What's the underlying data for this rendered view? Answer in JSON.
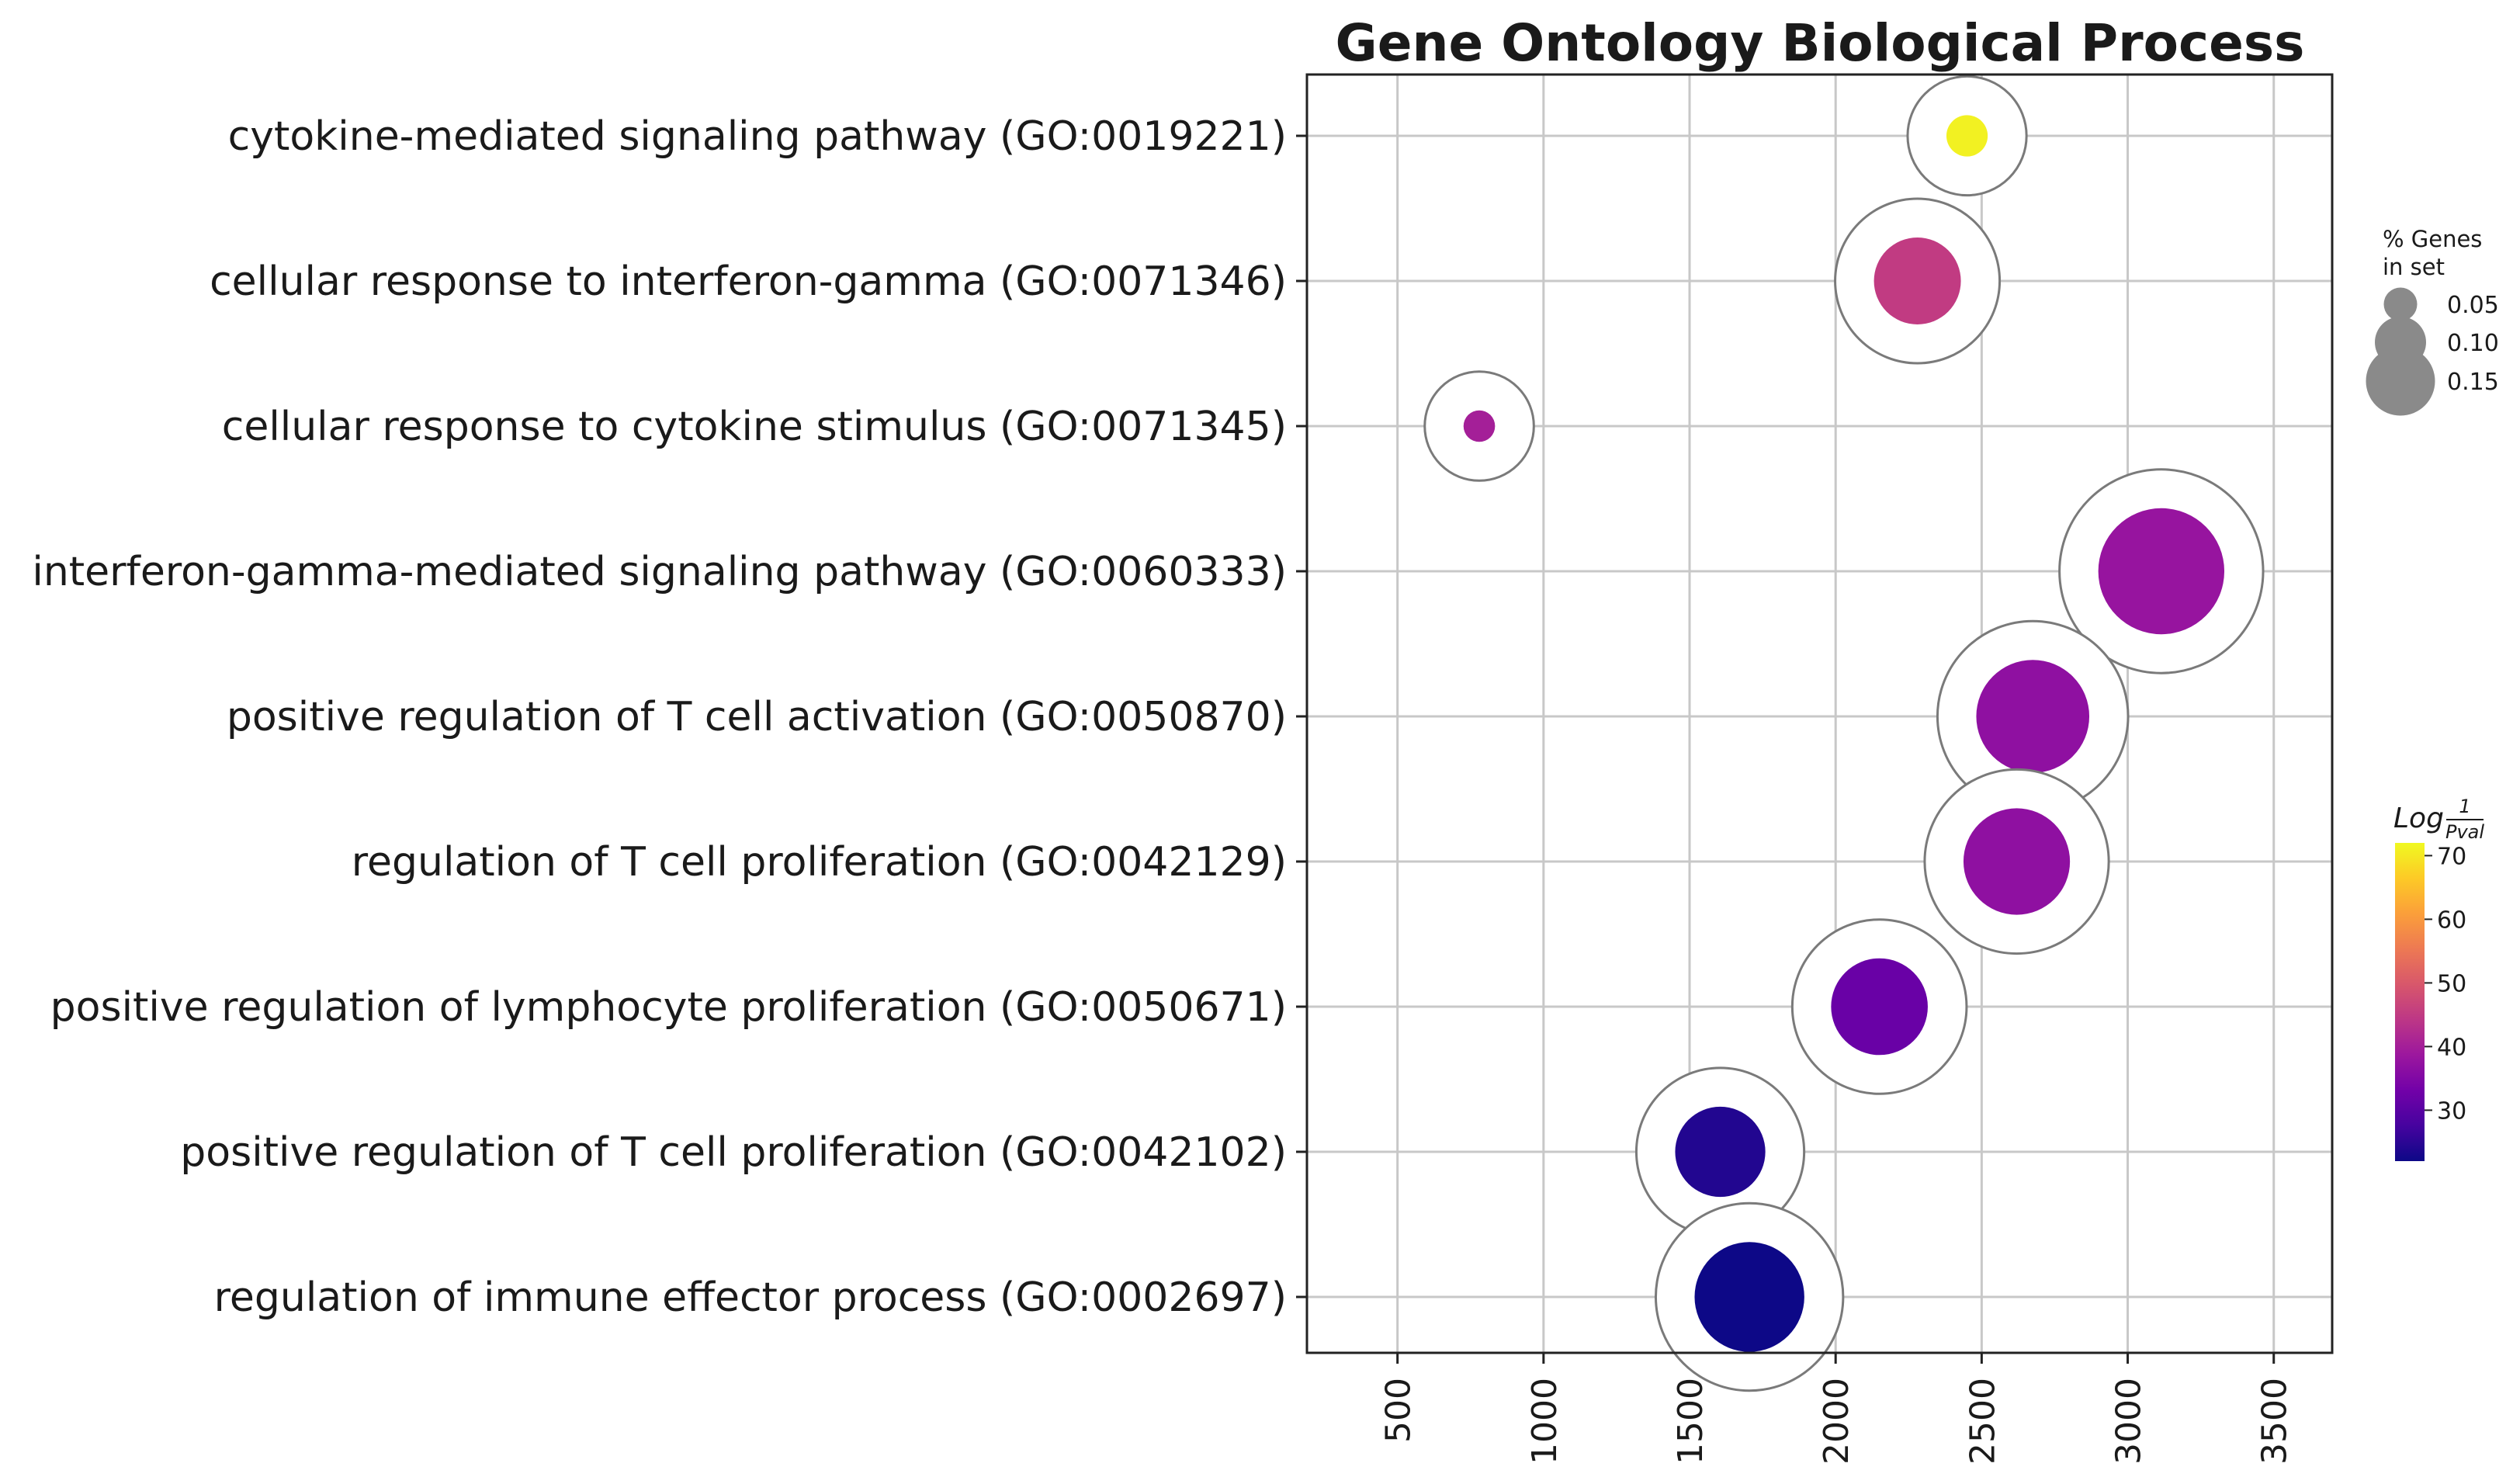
{
  "chart_data": {
    "type": "scatter",
    "title": "Gene Ontology Biological Process",
    "xlabel": "",
    "ylabel": "",
    "xlim": [
      190,
      3700
    ],
    "xticks": [
      500,
      1000,
      1500,
      2000,
      2500,
      3000,
      3500
    ],
    "xtick_labels": [
      "500",
      "1000",
      "1500",
      "2000",
      "2500",
      "3000",
      "3500"
    ],
    "grid": true,
    "categories": [
      "cytokine-mediated signaling pathway (GO:0019221)",
      "cellular response to interferon-gamma (GO:0071346)",
      "cellular response to cytokine stimulus (GO:0071345)",
      "interferon-gamma-mediated signaling pathway (GO:0060333)",
      "positive regulation of T cell activation (GO:0050870)",
      "regulation of T cell proliferation (GO:0042129)",
      "positive regulation of lymphocyte proliferation (GO:0050671)",
      "positive regulation of T cell proliferation (GO:0042102)",
      "regulation of immune effector process (GO:0002697)"
    ],
    "series": [
      {
        "name": "terms",
        "x": [
          2450,
          2280,
          780,
          3115,
          2675,
          2620,
          2150,
          1605,
          1705
        ],
        "pct_genes_in_set": [
          0.03,
          0.1,
          0.015,
          0.16,
          0.14,
          0.13,
          0.115,
          0.105,
          0.135
        ],
        "log_inv_pval": [
          71,
          45,
          40,
          38,
          37,
          37,
          32,
          24,
          22
        ]
      }
    ],
    "size_legend": {
      "title_lines": [
        "% Genes",
        "in set"
      ],
      "values": [
        0.05,
        0.1,
        0.15
      ],
      "labels": [
        "0.05",
        "0.10",
        "0.15"
      ],
      "position": "right"
    },
    "colorbar": {
      "title_main": "Log",
      "title_num": "1",
      "title_den": "Pval",
      "ticks": [
        30,
        40,
        50,
        60,
        70
      ],
      "tick_labels": [
        "30",
        "40",
        "50",
        "60",
        "70"
      ],
      "range": [
        22,
        72
      ],
      "colormap": "plasma",
      "position": "right"
    },
    "colors": {
      "plasma": [
        "#0d0887",
        "#46039f",
        "#7201a8",
        "#9c179e",
        "#bd3786",
        "#d8576b",
        "#ed7953",
        "#fb9f3a",
        "#fdca26",
        "#f0f921"
      ],
      "marker_ring": "#7a7a7a",
      "grid": "#c8c8c8"
    }
  }
}
